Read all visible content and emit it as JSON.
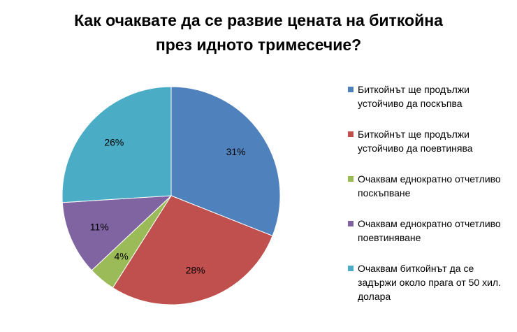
{
  "chart_data": {
    "type": "pie",
    "title_line1": "Как очаквате да се развие цената на биткойна",
    "title_line2": "през идното тримесечие?",
    "categories": [
      "Биткойнът ще продължи устойчиво да поскъпва",
      "Биткойнът ще продължи устойчиво да поевтинява",
      "Очаквам еднократно отчетливо поскъпване",
      "Очаквам еднократно отчетливо поевтиняване",
      "Очаквам биткойнът да се задържи около прага от 50 хил. долара"
    ],
    "values": [
      31,
      28,
      4,
      11,
      26
    ],
    "data_labels": [
      "31%",
      "28%",
      "4%",
      "11%",
      "26%"
    ],
    "colors": [
      "#4F81BD",
      "#C0504D",
      "#9BBB59",
      "#8064A2",
      "#4BACC6"
    ],
    "legend_position": "right"
  }
}
